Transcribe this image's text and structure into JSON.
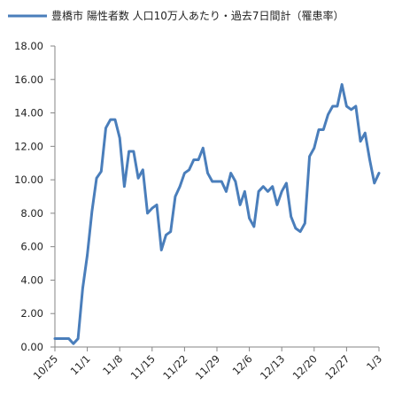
{
  "chart_data": {
    "type": "line",
    "legend": {
      "label": "豊橋市 陽性者数 人口10万人あたり・過去7日間計（罹患率）",
      "placement": "top-left"
    },
    "colors": {
      "line": "#4a7ebb",
      "axis": "#868686",
      "text": "#222222"
    },
    "ylim": [
      0,
      18
    ],
    "y_ticks": [
      "0.00",
      "2.00",
      "4.00",
      "6.00",
      "8.00",
      "10.00",
      "12.00",
      "14.00",
      "16.00",
      "18.00"
    ],
    "x_tick_labels": [
      "10/25",
      "11/1",
      "11/8",
      "11/15",
      "11/22",
      "11/29",
      "12/6",
      "12/13",
      "12/20",
      "12/27",
      "1/3"
    ],
    "x_tick_day_index": [
      0,
      7,
      14,
      21,
      28,
      35,
      42,
      49,
      56,
      63,
      70
    ],
    "x_day_max": 70,
    "grid": false,
    "series": [
      {
        "name": "豊橋市 陽性者数 人口10万人あたり・過去7日間計（罹患率）",
        "values": [
          0.5,
          0.5,
          0.5,
          0.5,
          0.2,
          0.5,
          3.5,
          5.5,
          8.1,
          10.1,
          10.5,
          13.1,
          13.6,
          13.6,
          12.5,
          9.6,
          11.7,
          11.7,
          10.1,
          10.6,
          8.0,
          8.3,
          8.5,
          5.8,
          6.7,
          6.9,
          9.0,
          9.6,
          10.4,
          10.6,
          11.2,
          11.2,
          11.9,
          10.4,
          9.9,
          9.9,
          9.9,
          9.3,
          10.4,
          9.9,
          8.5,
          9.3,
          7.7,
          7.2,
          9.3,
          9.6,
          9.3,
          9.6,
          8.5,
          9.3,
          9.8,
          7.8,
          7.1,
          6.9,
          7.4,
          11.4,
          11.9,
          13.0,
          13.0,
          13.9,
          14.4,
          14.4,
          15.7,
          14.4,
          14.2,
          14.4,
          12.3,
          12.8,
          11.2,
          9.8,
          10.4
        ]
      }
    ]
  }
}
